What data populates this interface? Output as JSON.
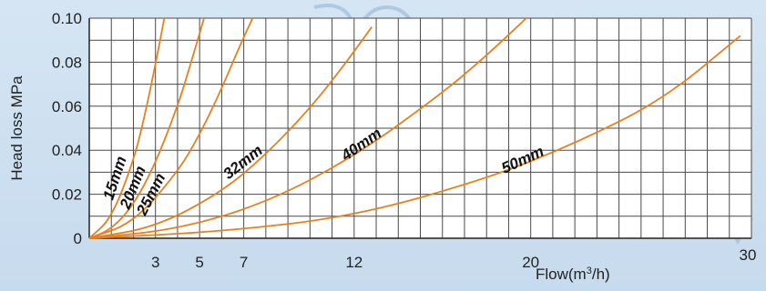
{
  "chart_data": {
    "type": "line",
    "title": "",
    "xlabel": "Flow(m",
    "xlabel_sup": "3",
    "xlabel_end": "/h)",
    "ylabel": "Head loss MPa",
    "xlim": [
      0,
      30
    ],
    "ylim": [
      0,
      0.1
    ],
    "x_ticks": [
      3,
      5,
      7,
      12,
      20,
      30
    ],
    "x_tick_labels": [
      "3",
      "5",
      "7",
      "12",
      "20",
      "30"
    ],
    "y_ticks": [
      0,
      0.02,
      0.04,
      0.06,
      0.08,
      0.1
    ],
    "y_tick_labels": [
      "0",
      "0.02",
      "0.04",
      "0.06",
      "0.08",
      "0.10"
    ],
    "grid": true,
    "line_color": "#e8801e",
    "series": [
      {
        "name": "15mm",
        "x": [
          0,
          1,
          2,
          2.5,
          3,
          3.4
        ],
        "y": [
          0,
          0.009,
          0.035,
          0.055,
          0.079,
          0.1
        ]
      },
      {
        "name": "20mm",
        "x": [
          0,
          1,
          2,
          3,
          4,
          4.5,
          5.2
        ],
        "y": [
          0,
          0.004,
          0.015,
          0.034,
          0.06,
          0.076,
          0.1
        ]
      },
      {
        "name": "25mm",
        "x": [
          0,
          2,
          4,
          5,
          6,
          6.8,
          7.4
        ],
        "y": [
          0,
          0.007,
          0.03,
          0.047,
          0.068,
          0.087,
          0.1
        ]
      },
      {
        "name": "32mm",
        "x": [
          0,
          3,
          6,
          8,
          10,
          11.5,
          12.8
        ],
        "y": [
          0,
          0.005,
          0.021,
          0.038,
          0.059,
          0.078,
          0.096
        ]
      },
      {
        "name": "40mm",
        "x": [
          0,
          4,
          8,
          12,
          16,
          18,
          19.8
        ],
        "y": [
          0,
          0.004,
          0.016,
          0.037,
          0.066,
          0.083,
          0.1
        ]
      },
      {
        "name": "50mm",
        "x": [
          0,
          6,
          12,
          18,
          22,
          26,
          29.5
        ],
        "y": [
          0,
          0.003,
          0.01,
          0.027,
          0.043,
          0.063,
          0.092
        ]
      }
    ]
  }
}
